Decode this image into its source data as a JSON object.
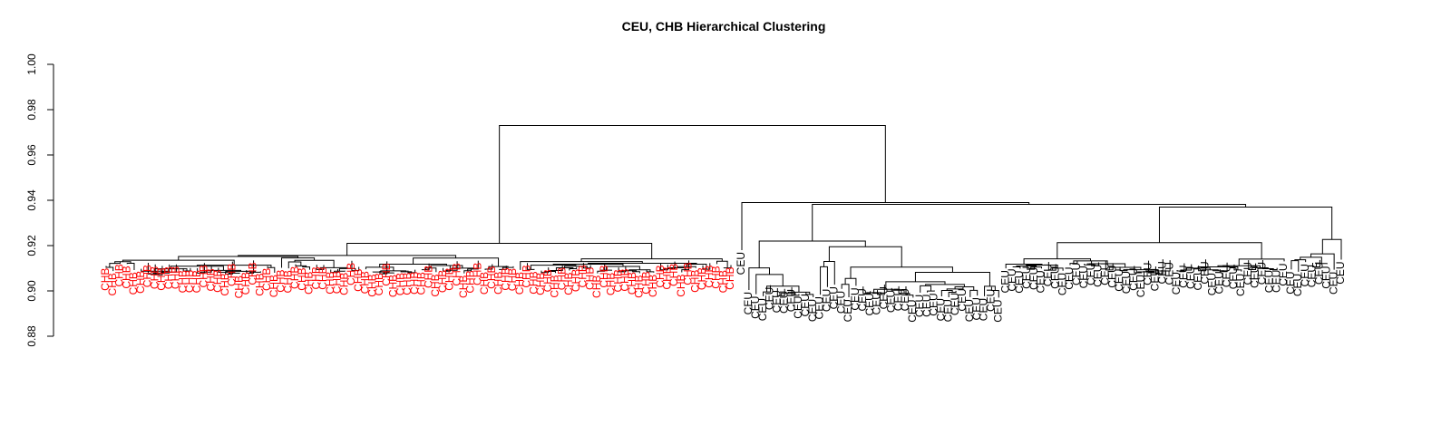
{
  "chart_data": {
    "type": "dendrogram",
    "title": "CEU, CHB Hierarchical Clustering",
    "xlabel": "",
    "ylabel": "",
    "ylim": [
      0.88,
      1.0
    ],
    "y_ticks": [
      0.88,
      0.9,
      0.92,
      0.94,
      0.96,
      0.98,
      1.0
    ],
    "y_tick_labels": [
      "0.88",
      "0.90",
      "0.92",
      "0.94",
      "0.96",
      "0.98",
      "1.00"
    ],
    "grid": false,
    "legend": "none",
    "groups": [
      {
        "name": "CHB",
        "label": "CHB",
        "color": "#ff0000",
        "leaf_count": 90
      },
      {
        "name": "CEU",
        "label": "CEU",
        "color": "#000000",
        "leaf_count": 85
      }
    ],
    "merge_heights": {
      "root": 0.973,
      "chb_cluster_top": 0.921,
      "ceu_cluster_top": 0.939,
      "ceu_subcluster_a": 0.922,
      "ceu_subcluster_b": 0.937
    }
  }
}
